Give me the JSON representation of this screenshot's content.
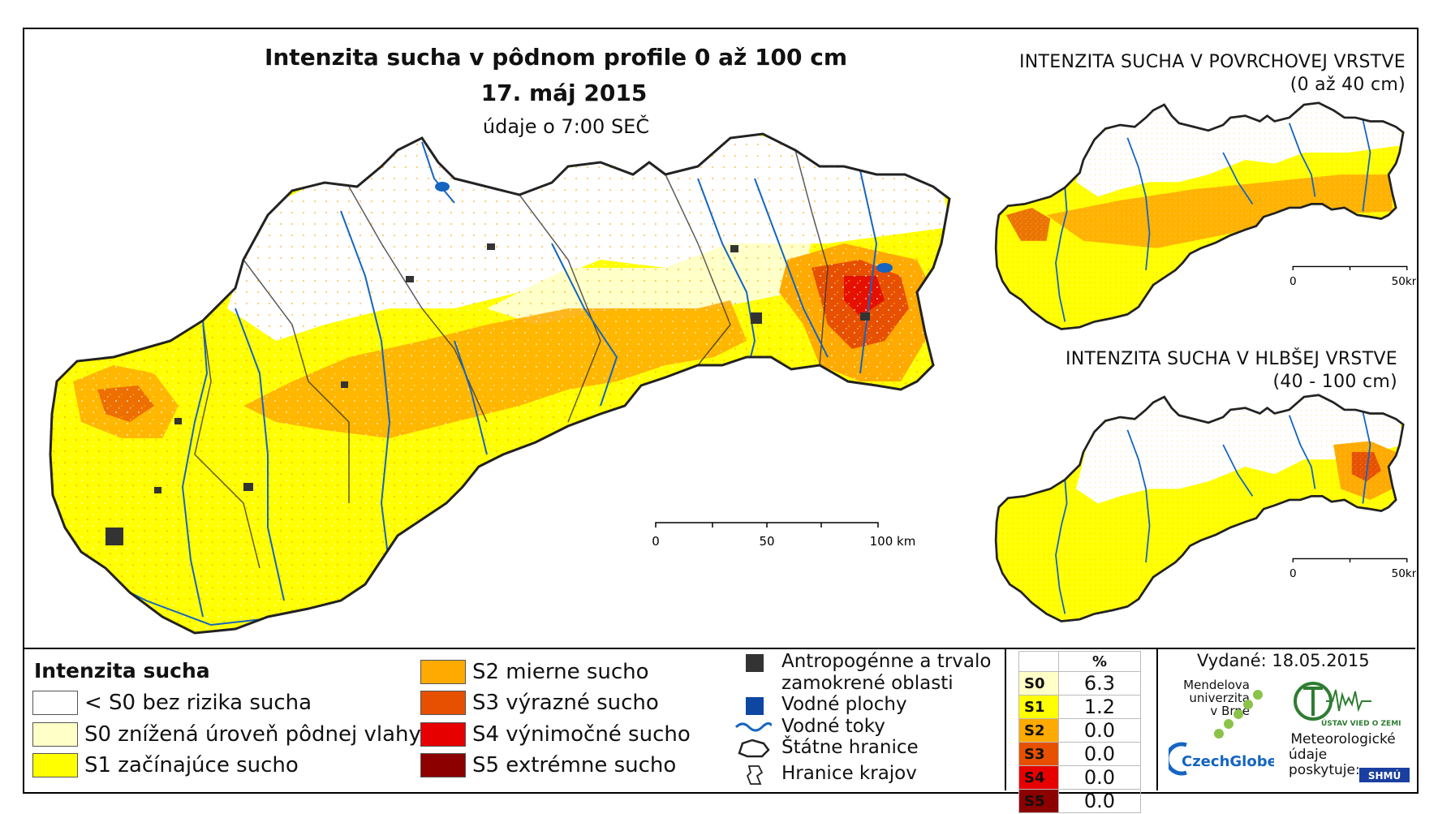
{
  "map": {
    "title": "Intenzita sucha v pôdnom profile 0 až 100 cm",
    "date": "17. máj 2015",
    "time": "údaje o 7:00 SEČ",
    "scale_main": [
      "0",
      "50",
      "100 km"
    ]
  },
  "inset_top": {
    "title_line1": "INTENZITA SUCHA V POVRCHOVEJ VRSTVE",
    "title_line2": "(0 až 40 cm)",
    "scale": [
      "0",
      "50km"
    ]
  },
  "inset_bottom": {
    "title_line1": "INTENZITA SUCHA V HLBŠEJ VRSTVE",
    "title_line2": "(40 - 100 cm)",
    "scale": [
      "0",
      "50km"
    ]
  },
  "legend": {
    "heading": "Intenzita sucha",
    "classes": [
      {
        "label": "< S0 bez rizika sucha",
        "color": "#ffffff"
      },
      {
        "label": "S0 znížená úroveň pôdnej vlahy",
        "color": "#ffffc8"
      },
      {
        "label": "S1 začínajúce sucho",
        "color": "#ffff00"
      },
      {
        "label": "S2 mierne sucho",
        "color": "#ffaa00"
      },
      {
        "label": "S3 výrazné sucho",
        "color": "#e65000"
      },
      {
        "label": "S4 výnimočné sucho",
        "color": "#e60000"
      },
      {
        "label": "S5 extrémne sucho",
        "color": "#8c0000"
      }
    ],
    "symbols": {
      "anthropogenic": "Antropogénne a trvalo zamokrené oblasti",
      "water_bodies": "Vodné plochy",
      "rivers": "Vodné toky",
      "state_border": "Štátne hranice",
      "region_border": "Hranice krajov"
    }
  },
  "percent_table": {
    "header": "%",
    "rows": [
      {
        "cls": "S0",
        "value": "6.3",
        "color": "#ffffc8"
      },
      {
        "cls": "S1",
        "value": "1.2",
        "color": "#ffff00"
      },
      {
        "cls": "S2",
        "value": "0.0",
        "color": "#ffaa00"
      },
      {
        "cls": "S3",
        "value": "0.0",
        "color": "#e65000"
      },
      {
        "cls": "S4",
        "value": "0.0",
        "color": "#e60000"
      },
      {
        "cls": "S5",
        "value": "0.0",
        "color": "#8c0000"
      }
    ]
  },
  "credits": {
    "issued": "Vydané: 18.05.2015",
    "mendel": [
      "Mendelova",
      "univerzita",
      "v Brně"
    ],
    "czechglobe": "CzechGlobe",
    "uvoz": "ÚSTAV VIED O ZEMI",
    "provided": [
      "Meteorologické",
      "údaje",
      "poskytuje:"
    ],
    "shmu": "SHMÚ"
  }
}
